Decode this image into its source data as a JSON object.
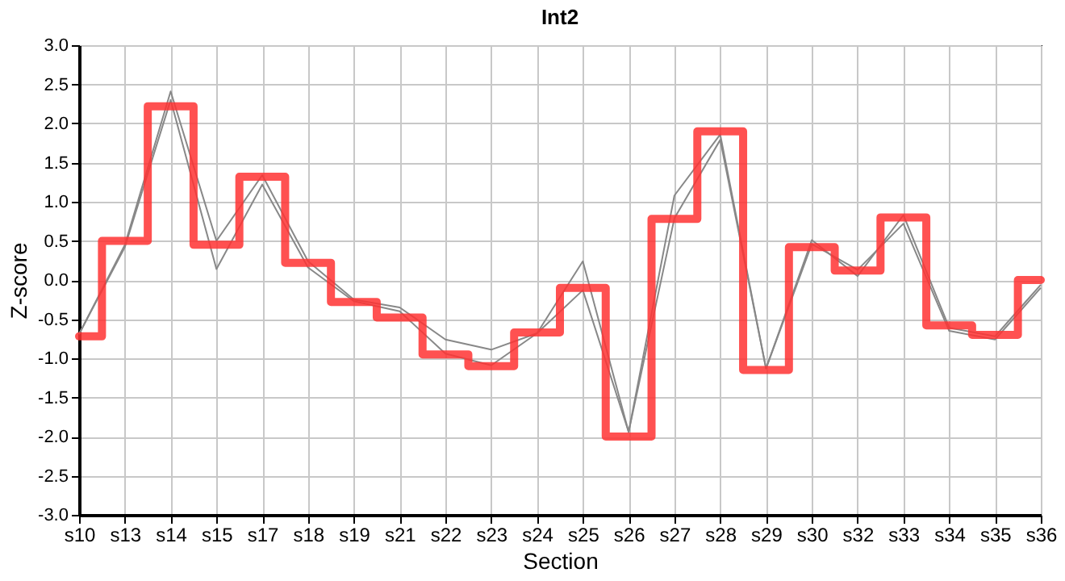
{
  "chart_data": {
    "type": "line",
    "title": "Int2",
    "xlabel": "Section",
    "ylabel": "Z-score",
    "categories": [
      "s10",
      "s13",
      "s14",
      "s15",
      "s17",
      "s18",
      "s19",
      "s21",
      "s22",
      "s23",
      "s24",
      "s25",
      "s26",
      "s27",
      "s28",
      "s29",
      "s30",
      "s32",
      "s33",
      "s34",
      "s35",
      "s36"
    ],
    "series": [
      {
        "color": "#888888",
        "values": [
          -0.69,
          0.45,
          2.41,
          0.5,
          1.34,
          0.24,
          -0.25,
          -0.35,
          -0.76,
          -0.89,
          -0.68,
          0.24,
          -1.94,
          1.08,
          1.86,
          -1.13,
          0.51,
          0.05,
          0.83,
          -0.61,
          -0.72,
          -0.06
        ]
      },
      {
        "color": "#888888",
        "values": [
          -0.69,
          0.42,
          2.3,
          0.14,
          1.22,
          0.16,
          -0.27,
          -0.4,
          -0.94,
          -1.09,
          -0.68,
          -0.13,
          -1.94,
          0.79,
          1.79,
          -1.13,
          0.46,
          0.13,
          0.72,
          -0.65,
          -0.76,
          -0.1
        ]
      },
      {
        "type": "step",
        "color": "#ff3333",
        "values": [
          -0.72,
          0.5,
          2.22,
          0.45,
          1.32,
          0.22,
          -0.28,
          -0.48,
          -0.95,
          -1.1,
          -0.67,
          -0.1,
          -2.0,
          0.78,
          1.9,
          -1.15,
          0.42,
          0.12,
          0.8,
          -0.58,
          -0.7,
          0.0
        ]
      }
    ],
    "ylim": [
      -3.0,
      3.0
    ],
    "yticks": [
      {
        "value": -3,
        "label": "-3.0"
      },
      {
        "value": -2.5,
        "label": "-2.5"
      },
      {
        "value": -2,
        "label": "-2.0"
      },
      {
        "value": -1.5,
        "label": "-1.5"
      },
      {
        "value": -1,
        "label": "-1.0"
      },
      {
        "value": -0.5,
        "label": "-0.5"
      },
      {
        "value": 0,
        "label": "0.0"
      },
      {
        "value": 0.5,
        "label": "0.5"
      },
      {
        "value": 1,
        "label": "1.0"
      },
      {
        "value": 1.5,
        "label": "1.5"
      },
      {
        "value": 2,
        "label": "2.0"
      },
      {
        "value": 2.5,
        "label": "2.5"
      },
      {
        "value": 3,
        "label": "3.0"
      }
    ],
    "grid": true,
    "marker": "none",
    "line_style": "solid"
  }
}
